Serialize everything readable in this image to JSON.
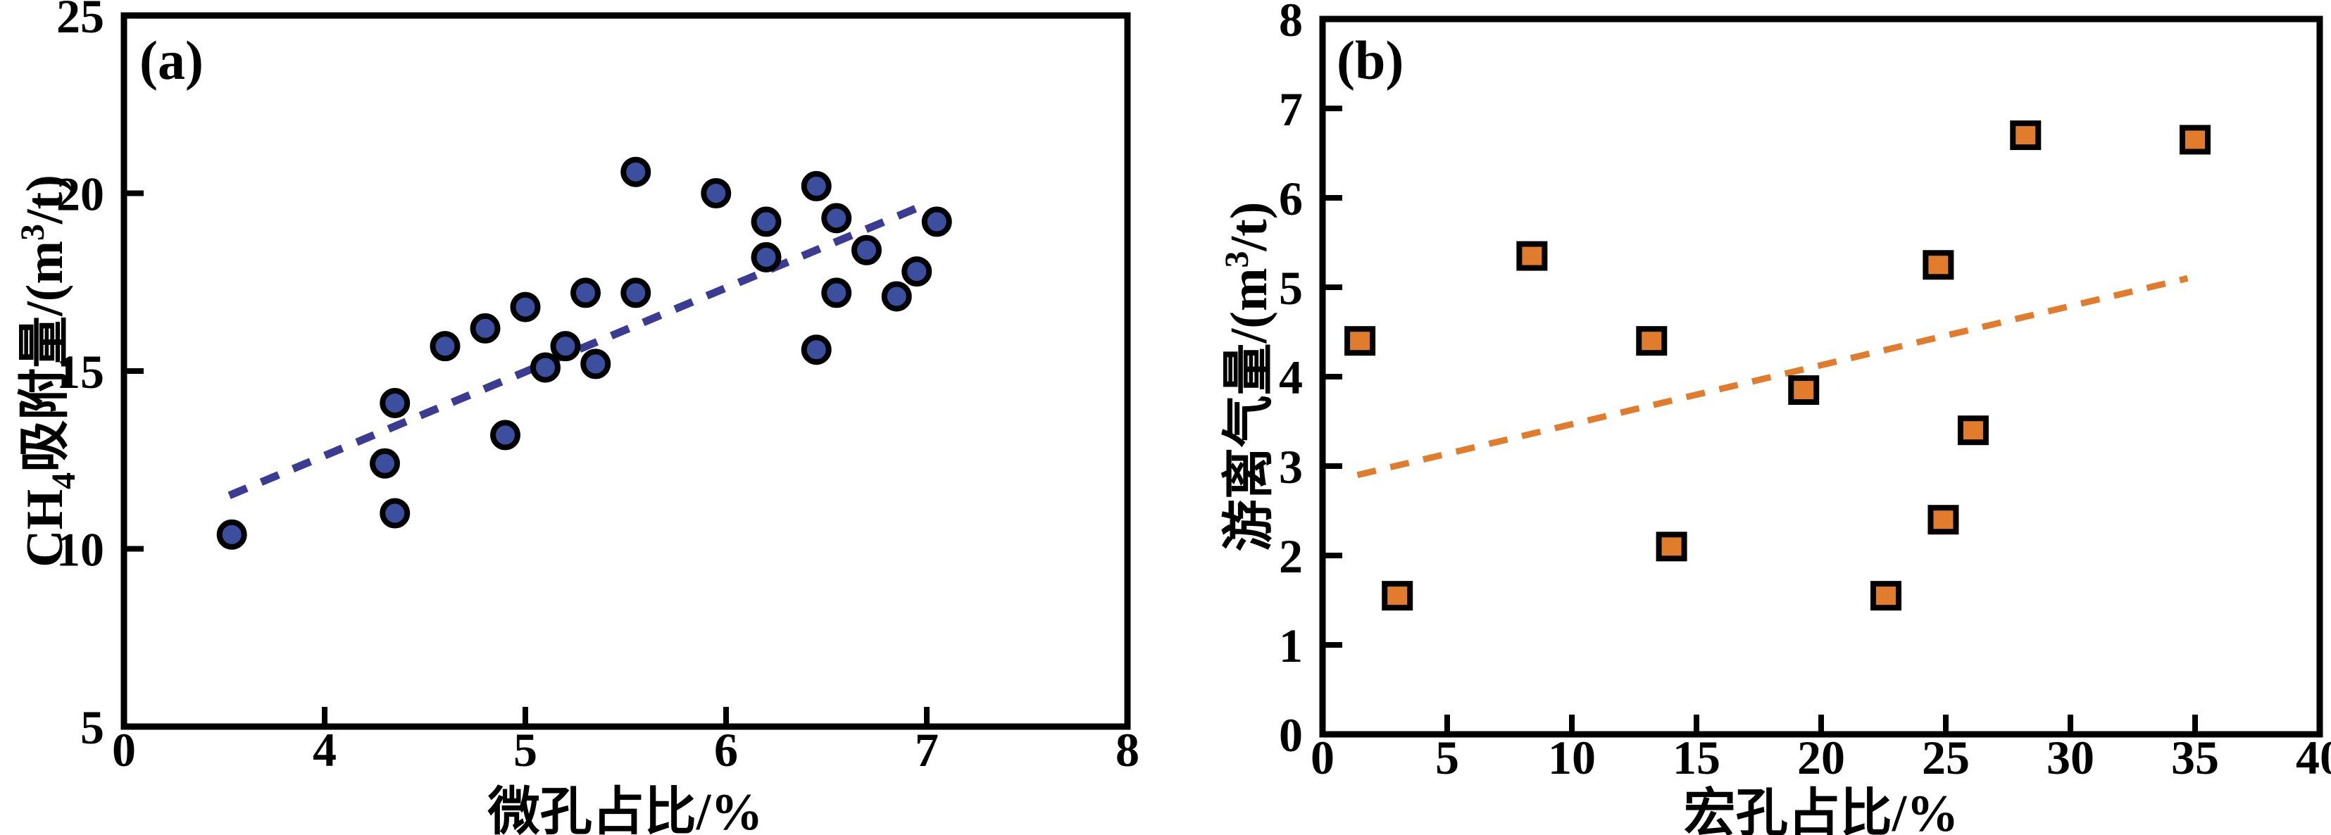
{
  "figure": {
    "panels": [
      {
        "tag": "(a)",
        "xlabel": "微孔占比/%",
        "ylabel_text": "CH4吸附量/(m3/t)",
        "ylabel_parts": {
          "pre": "CH",
          "sub": "4",
          "mid": "吸附量/(m",
          "sup": "3",
          "post": "/t)"
        }
      },
      {
        "tag": "(b)",
        "xlabel": "宏孔占比/%",
        "ylabel_text": "游离气量/(m3/t)",
        "ylabel_parts": {
          "pre": "游离气量/(m",
          "sup": "3",
          "post": "/t)"
        }
      }
    ]
  },
  "chart_data": [
    {
      "type": "scatter",
      "panel": "a",
      "tag": "(a)",
      "xlabel": "微孔占比/%",
      "ylabel": "CH4吸附量/(m3/t)",
      "x_ticks": [
        0,
        4,
        5,
        6,
        7,
        8
      ],
      "x_tick_labels": [
        "0",
        "4",
        "5",
        "6",
        "7",
        "8"
      ],
      "x_axis_note": "ticks evenly spaced; segment 0-4 compressed (broken scale)",
      "ylim": [
        5,
        25
      ],
      "y_ticks": [
        5,
        10,
        15,
        20,
        25
      ],
      "grid": false,
      "legend": "none",
      "marker": {
        "shape": "circle",
        "fill": "#3C4E9E",
        "edge": "#000000"
      },
      "trend": {
        "style": "dashed",
        "color": "#3B3B93",
        "from": [
          2.1,
          11.5
        ],
        "to": [
          7.0,
          19.7
        ]
      },
      "points": [
        [
          2.15,
          10.4
        ],
        [
          4.3,
          12.4
        ],
        [
          4.35,
          11.0
        ],
        [
          4.35,
          14.1
        ],
        [
          4.6,
          15.7
        ],
        [
          4.8,
          16.2
        ],
        [
          4.9,
          13.2
        ],
        [
          5.0,
          16.8
        ],
        [
          5.1,
          15.1
        ],
        [
          5.2,
          15.7
        ],
        [
          5.3,
          17.2
        ],
        [
          5.35,
          15.2
        ],
        [
          5.55,
          17.2
        ],
        [
          5.55,
          20.6
        ],
        [
          5.95,
          20.0
        ],
        [
          6.2,
          18.2
        ],
        [
          6.2,
          19.2
        ],
        [
          6.45,
          15.6
        ],
        [
          6.45,
          20.2
        ],
        [
          6.55,
          17.2
        ],
        [
          6.55,
          19.3
        ],
        [
          6.7,
          18.4
        ],
        [
          6.85,
          17.1
        ],
        [
          6.95,
          17.8
        ],
        [
          7.05,
          19.2
        ]
      ]
    },
    {
      "type": "scatter",
      "panel": "b",
      "tag": "(b)",
      "xlabel": "宏孔占比/%",
      "ylabel": "游离气量/(m3/t)",
      "xlim": [
        0,
        40
      ],
      "x_ticks": [
        0,
        5,
        10,
        15,
        20,
        25,
        30,
        35,
        40
      ],
      "x_tick_labels": [
        "0",
        "5",
        "10",
        "15",
        "20",
        "25",
        "30",
        "35",
        "40"
      ],
      "ylim": [
        0,
        8
      ],
      "y_ticks": [
        0,
        1,
        2,
        3,
        4,
        5,
        6,
        7,
        8
      ],
      "grid": false,
      "legend": "none",
      "marker": {
        "shape": "square",
        "fill": "#E07C2B",
        "edge": "#000000"
      },
      "trend": {
        "style": "dashed",
        "color": "#E07C2B",
        "from": [
          1.4,
          2.9
        ],
        "to": [
          34.7,
          5.1
        ]
      },
      "points": [
        [
          1.5,
          4.4
        ],
        [
          3.0,
          1.55
        ],
        [
          8.4,
          5.35
        ],
        [
          13.2,
          4.4
        ],
        [
          14.0,
          2.1
        ],
        [
          19.3,
          3.85
        ],
        [
          22.6,
          1.55
        ],
        [
          24.7,
          5.25
        ],
        [
          24.9,
          2.4
        ],
        [
          26.1,
          3.4
        ],
        [
          28.2,
          6.7
        ],
        [
          35.0,
          6.65
        ]
      ]
    }
  ]
}
